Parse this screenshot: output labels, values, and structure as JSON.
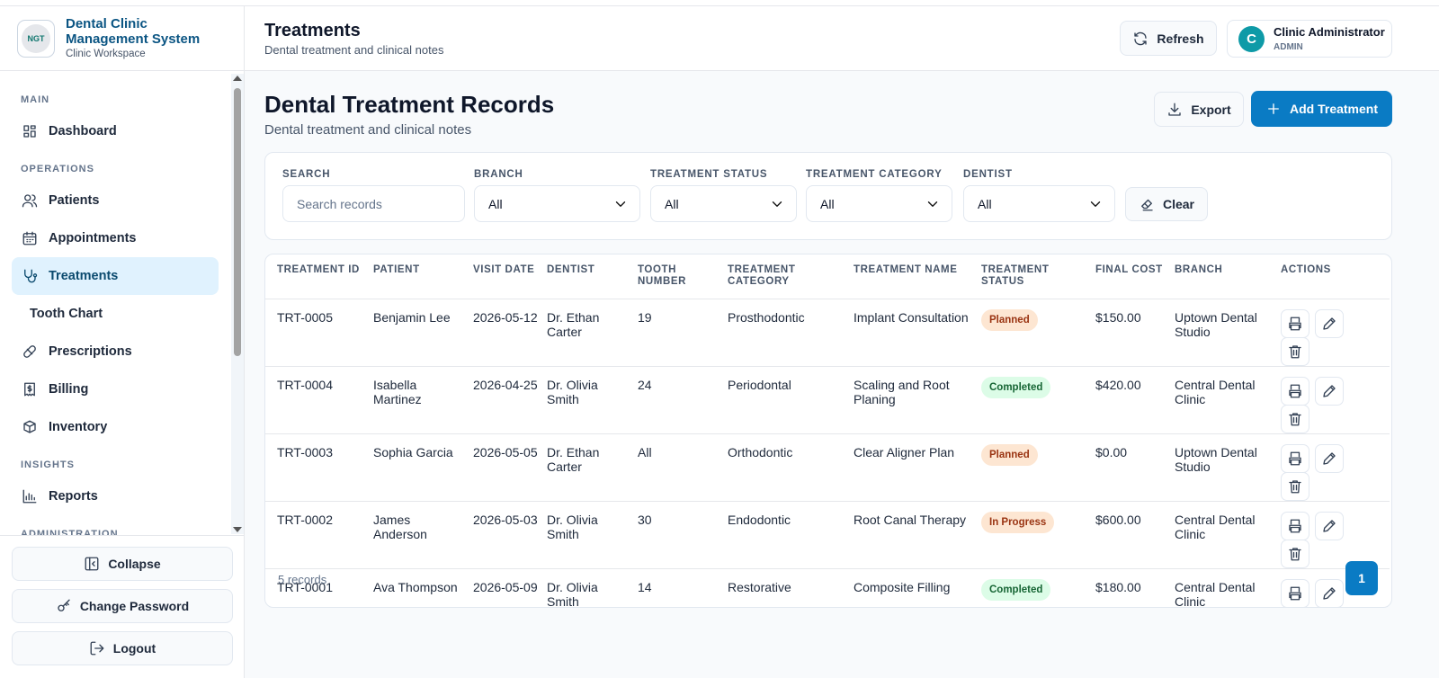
{
  "sidebar": {
    "logo": "NGT",
    "brand": "Dental Clinic Management System",
    "workspace": "Clinic Workspace",
    "sections": [
      {
        "heading": "MAIN",
        "items": [
          "Dashboard"
        ]
      },
      {
        "heading": "OPERATIONS",
        "items": [
          "Patients",
          "Appointments",
          "Treatments",
          "Tooth Chart",
          "Prescriptions",
          "Billing",
          "Inventory"
        ]
      },
      {
        "heading": "INSIGHTS",
        "items": [
          "Reports"
        ]
      },
      {
        "heading": "ADMINISTRATION",
        "items": []
      }
    ],
    "footer": [
      "Collapse",
      "Change Password",
      "Logout"
    ]
  },
  "header": {
    "title": "Treatments",
    "subtitle": "Dental treatment and clinical notes",
    "refresh": "Refresh",
    "user": {
      "initial": "C",
      "name": "Clinic Administrator",
      "role": "ADMIN"
    }
  },
  "page": {
    "title": "Dental Treatment Records",
    "subtitle": "Dental treatment and clinical notes",
    "export": "Export",
    "add": "Add Treatment"
  },
  "filters": {
    "fields": [
      {
        "label": "SEARCH",
        "placeholder": "Search records"
      },
      {
        "label": "BRANCH",
        "value": "All"
      },
      {
        "label": "TREATMENT STATUS",
        "value": "All"
      },
      {
        "label": "TREATMENT CATEGORY",
        "value": "All"
      },
      {
        "label": "DENTIST",
        "value": "All"
      }
    ],
    "clear": "Clear"
  },
  "table": {
    "columns": [
      "TREATMENT ID",
      "PATIENT",
      "VISIT DATE",
      "DENTIST",
      "TOOTH NUMBER",
      "TREATMENT CATEGORY",
      "TREATMENT NAME",
      "TREATMENT STATUS",
      "FINAL COST",
      "BRANCH",
      "ACTIONS"
    ],
    "rows": [
      [
        "TRT-0005",
        "Benjamin Lee",
        "2026-05-12",
        "Dr. Ethan Carter",
        "19",
        "Prosthodontic",
        "Implant Consultation",
        "Planned",
        "$150.00",
        "Uptown Dental Studio"
      ],
      [
        "TRT-0004",
        "Isabella Martinez",
        "2026-04-25",
        "Dr. Olivia Smith",
        "24",
        "Periodontal",
        "Scaling and Root Planing",
        "Completed",
        "$420.00",
        "Central Dental Clinic"
      ],
      [
        "TRT-0003",
        "Sophia Garcia",
        "2026-05-05",
        "Dr. Ethan Carter",
        "All",
        "Orthodontic",
        "Clear Aligner Plan",
        "Planned",
        "$0.00",
        "Uptown Dental Studio"
      ],
      [
        "TRT-0002",
        "James Anderson",
        "2026-05-03",
        "Dr. Olivia Smith",
        "30",
        "Endodontic",
        "Root Canal Therapy",
        "In Progress",
        "$600.00",
        "Central Dental Clinic"
      ],
      [
        "TRT-0001",
        "Ava Thompson",
        "2026-05-09",
        "Dr. Olivia Smith",
        "14",
        "Restorative",
        "Composite Filling",
        "Completed",
        "$180.00",
        "Central Dental Clinic"
      ]
    ],
    "status_colors": [
      {
        "bg": "#fde6d2",
        "fg": "#9a3412"
      },
      {
        "bg": "#dcfce7",
        "fg": "#166534"
      },
      {
        "bg": "#fde6d2",
        "fg": "#9a3412"
      },
      {
        "bg": "#fde6d2",
        "fg": "#9a3412"
      },
      {
        "bg": "#dcfce7",
        "fg": "#166534"
      }
    ],
    "count": "5 records",
    "page": "1"
  }
}
